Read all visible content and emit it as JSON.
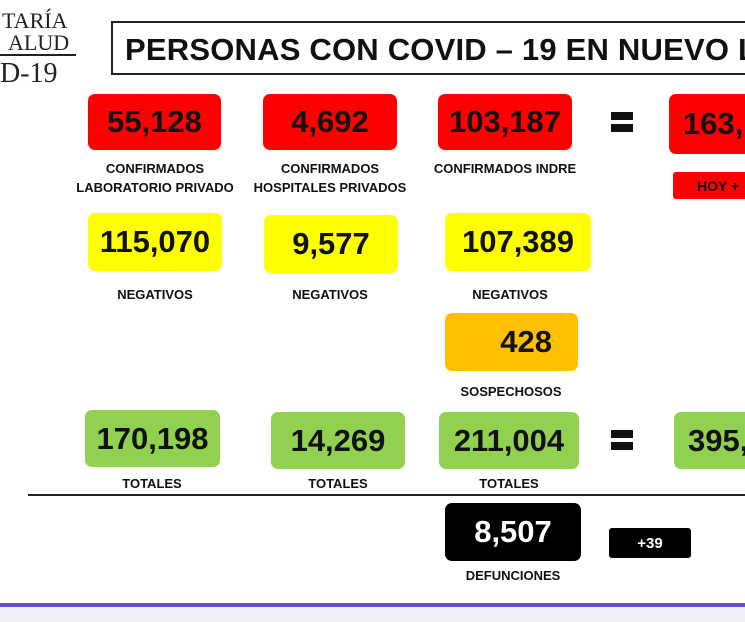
{
  "logo": {
    "line1": "TARÍA",
    "line2": "ALUD",
    "line3": "D-19"
  },
  "title": "PERSONAS CON COVID – 19 EN NUEVO L",
  "row_confirmados": {
    "privado_lab": {
      "value": "55,128",
      "label1": "CONFIRMADOS",
      "label2": "LABORATORIO PRIVADO"
    },
    "hospitales_privados": {
      "value": "4,692",
      "label1": "CONFIRMADOS",
      "label2": "HOSPITALES PRIVADOS"
    },
    "indre": {
      "value": "103,187",
      "label1": "CONFIRMADOS INDRE"
    },
    "total": {
      "value": "163,",
      "badge": "HOY +"
    }
  },
  "row_negativos": {
    "privado_lab": {
      "value": "115,070",
      "label": "NEGATIVOS"
    },
    "hospitales_privados": {
      "value": "9,577",
      "label": "NEGATIVOS"
    },
    "indre": {
      "value": "107,389",
      "label": "NEGATIVOS"
    }
  },
  "sospechosos": {
    "value": "428",
    "label": "SOSPECHOSOS"
  },
  "row_totales": {
    "privado_lab": {
      "value": "170,198",
      "label": "TOTALES"
    },
    "hospitales_privados": {
      "value": "14,269",
      "label": "TOTALES"
    },
    "indre": {
      "value": "211,004",
      "label": "TOTALES"
    },
    "total": {
      "value": "395,"
    }
  },
  "defunciones": {
    "value": "8,507",
    "label": "DEFUNCIONES",
    "delta": "+39"
  },
  "colors": {
    "red": "#ff0000",
    "yellow": "#ffff00",
    "orange": "#ffc000",
    "green": "#92d050",
    "black": "#000000",
    "accent_bar": "#6a4fc1"
  }
}
